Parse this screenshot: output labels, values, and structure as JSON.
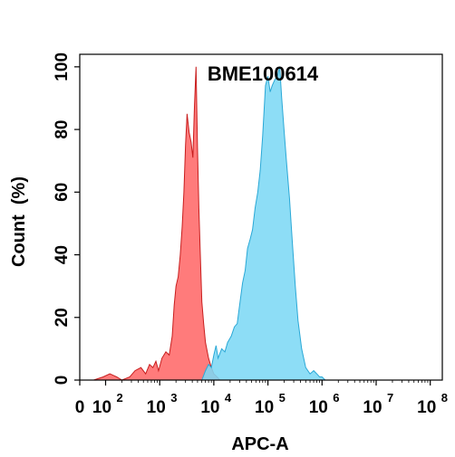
{
  "chart_data": {
    "type": "area",
    "title": "BME100614",
    "xlabel": "APC-A",
    "ylabel": "Count  (%)",
    "x_scale": "log",
    "xlim": [
      0,
      100000000
    ],
    "ylim": [
      0,
      104
    ],
    "grid": false,
    "x_ticks": [
      {
        "value": 0,
        "base": "0",
        "exp": ""
      },
      {
        "value": 100,
        "base": "10",
        "exp": "2"
      },
      {
        "value": 1000,
        "base": "10",
        "exp": "3"
      },
      {
        "value": 10000,
        "base": "10",
        "exp": "4"
      },
      {
        "value": 100000,
        "base": "10",
        "exp": "5"
      },
      {
        "value": 1000000,
        "base": "10",
        "exp": "6"
      },
      {
        "value": 10000000,
        "base": "10",
        "exp": "7"
      },
      {
        "value": 100000000,
        "base": "10",
        "exp": "8"
      }
    ],
    "y_ticks": [
      0,
      20,
      40,
      60,
      80,
      100
    ],
    "series": [
      {
        "color": "#ff7070",
        "stroke": "#c81e1e",
        "x": [
          60,
          90,
          120,
          160,
          200,
          280,
          350,
          450,
          550,
          650,
          750,
          850,
          950,
          1100,
          1300,
          1500,
          1700,
          1850,
          2000,
          2200,
          2400,
          2600,
          2800,
          3000,
          3200,
          3500,
          3800,
          4100,
          4400,
          4700,
          5000,
          5300,
          5600,
          6000,
          6500,
          7000,
          8000,
          9000,
          10000,
          11500,
          13000
        ],
        "y": [
          0,
          1,
          2,
          1,
          0,
          1,
          3,
          4,
          2,
          5,
          4,
          6,
          3,
          7,
          9,
          8,
          14,
          24,
          30,
          33,
          40,
          49,
          60,
          75,
          85,
          79,
          76,
          71,
          88,
          100,
          74,
          55,
          41,
          25,
          18,
          12,
          7,
          4,
          2,
          1,
          0
        ]
      },
      {
        "color": "#7dd8f5",
        "stroke": "#2aa8d6",
        "x": [
          6000,
          7000,
          8000,
          9000,
          10000,
          11000,
          12000,
          14000,
          16000,
          18000,
          21000,
          24000,
          27000,
          30000,
          34000,
          38000,
          42000,
          47000,
          52000,
          58000,
          65000,
          72000,
          80000,
          90000,
          100000,
          110000,
          120000,
          135000,
          150000,
          165000,
          180000,
          200000,
          220000,
          250000,
          280000,
          320000,
          360000,
          420000,
          500000,
          600000,
          700000,
          800000,
          900000,
          1000000,
          1150000
        ],
        "y": [
          0,
          3,
          5,
          4,
          8,
          11,
          7,
          10,
          9,
          12,
          14,
          17,
          18,
          24,
          31,
          35,
          42,
          45,
          48,
          55,
          60,
          67,
          78,
          94,
          97,
          92,
          94,
          96,
          97,
          100,
          90,
          79,
          70,
          58,
          45,
          30,
          19,
          10,
          4,
          2,
          3,
          2,
          1,
          1,
          0
        ]
      }
    ]
  }
}
